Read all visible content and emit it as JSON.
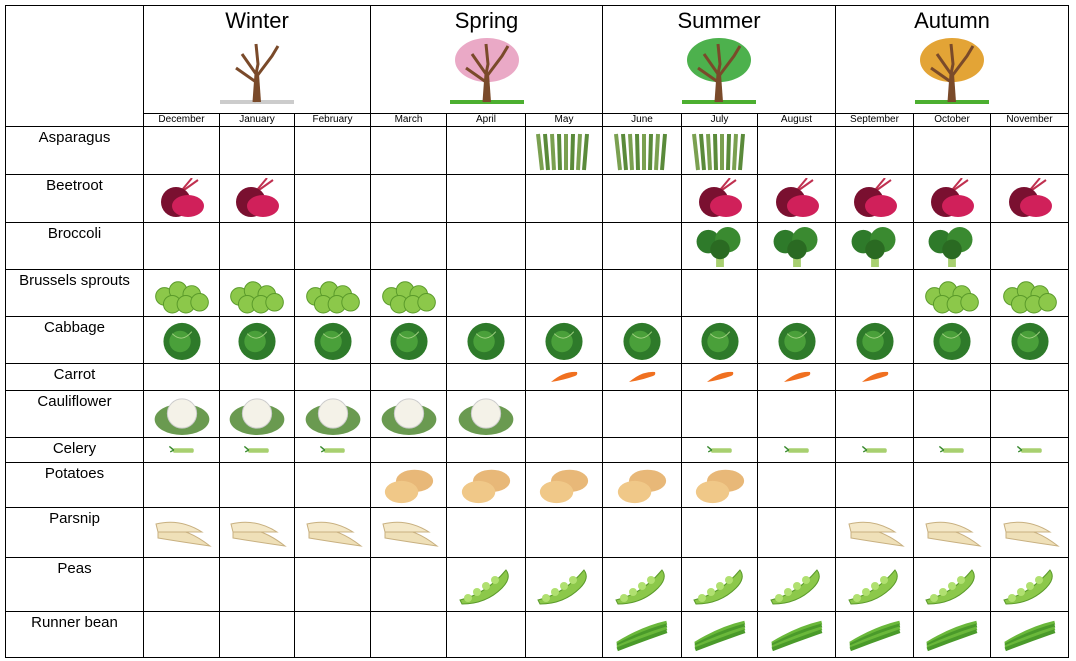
{
  "seasons": [
    {
      "name": "Winter",
      "canopy": "none"
    },
    {
      "name": "Spring",
      "canopy": "#e8a0c0"
    },
    {
      "name": "Summer",
      "canopy": "#3aa83a"
    },
    {
      "name": "Autumn",
      "canopy": "#e09a20"
    }
  ],
  "months": [
    "December",
    "January",
    "February",
    "March",
    "April",
    "May",
    "June",
    "July",
    "August",
    "September",
    "October",
    "November"
  ],
  "vegetables": [
    {
      "name": "Asparagus",
      "icon": "asparagus",
      "available": [
        0,
        0,
        0,
        0,
        0,
        1,
        1,
        1,
        0,
        0,
        0,
        0
      ]
    },
    {
      "name": "Beetroot",
      "icon": "beetroot",
      "available": [
        1,
        1,
        0,
        0,
        0,
        0,
        0,
        1,
        1,
        1,
        1,
        1
      ]
    },
    {
      "name": "Broccoli",
      "icon": "broccoli",
      "available": [
        0,
        0,
        0,
        0,
        0,
        0,
        0,
        1,
        1,
        1,
        1,
        0
      ]
    },
    {
      "name": "Brussels sprouts",
      "icon": "brussels-sprouts",
      "available": [
        1,
        1,
        1,
        1,
        0,
        0,
        0,
        0,
        0,
        0,
        1,
        1
      ]
    },
    {
      "name": "Cabbage",
      "icon": "cabbage",
      "available": [
        1,
        1,
        1,
        1,
        1,
        1,
        1,
        1,
        1,
        1,
        1,
        1
      ]
    },
    {
      "name": "Carrot",
      "icon": "carrot",
      "available": [
        0,
        0,
        0,
        0,
        0,
        1,
        1,
        1,
        1,
        1,
        0,
        0
      ]
    },
    {
      "name": "Cauliflower",
      "icon": "cauliflower",
      "available": [
        1,
        1,
        1,
        1,
        1,
        0,
        0,
        0,
        0,
        0,
        0,
        0
      ]
    },
    {
      "name": "Celery",
      "icon": "celery",
      "available": [
        1,
        1,
        1,
        0,
        0,
        0,
        0,
        1,
        1,
        1,
        1,
        1
      ]
    },
    {
      "name": "Potatoes",
      "icon": "potatoes",
      "available": [
        0,
        0,
        0,
        1,
        1,
        1,
        1,
        1,
        0,
        0,
        0,
        0
      ]
    },
    {
      "name": "Parsnip",
      "icon": "parsnip",
      "available": [
        1,
        1,
        1,
        1,
        0,
        0,
        0,
        0,
        0,
        1,
        1,
        1
      ]
    },
    {
      "name": "Peas",
      "icon": "peas",
      "available": [
        0,
        0,
        0,
        0,
        1,
        1,
        1,
        1,
        1,
        1,
        1,
        1
      ]
    },
    {
      "name": "Runner bean",
      "icon": "runner-bean",
      "available": [
        0,
        0,
        0,
        0,
        0,
        0,
        1,
        1,
        1,
        1,
        1,
        1
      ]
    }
  ]
}
